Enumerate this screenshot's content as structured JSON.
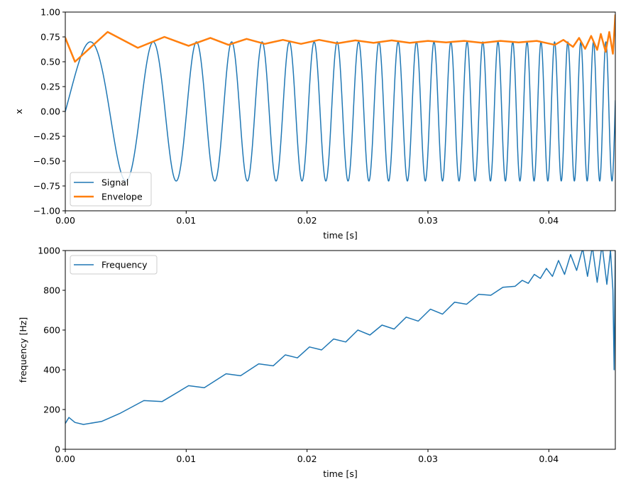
{
  "chart_data": [
    {
      "type": "line",
      "xlabel": "time [s]",
      "ylabel": "x",
      "xlim": [
        0,
        0.0455
      ],
      "ylim": [
        -1.0,
        1.0
      ],
      "xticks": [
        0.0,
        0.01,
        0.02,
        0.03,
        0.04
      ],
      "xtick_labels": [
        "0.00",
        "0.01",
        "0.02",
        "0.03",
        "0.04"
      ],
      "yticks": [
        -1.0,
        -0.75,
        -0.5,
        -0.25,
        0.0,
        0.25,
        0.5,
        0.75,
        1.0
      ],
      "ytick_labels": [
        "−1.00",
        "−0.75",
        "−0.50",
        "−0.25",
        "0.00",
        "0.25",
        "0.50",
        "0.75",
        "1.00"
      ],
      "legend_position": "lower-left",
      "series": [
        {
          "name": "Signal",
          "color": "#1f77b4",
          "function": "chirp",
          "amplitude": 0.7,
          "f0_hz": 100,
          "f1_hz": 1000,
          "t1_s": 0.0455,
          "x_range": [
            0,
            0.0455
          ]
        },
        {
          "name": "Envelope",
          "color": "#ff7f0e",
          "x": [
            0.0,
            0.0008,
            0.0035,
            0.006,
            0.0082,
            0.0102,
            0.012,
            0.0135,
            0.015,
            0.0165,
            0.018,
            0.0195,
            0.021,
            0.0225,
            0.024,
            0.0255,
            0.027,
            0.0285,
            0.03,
            0.0315,
            0.033,
            0.0345,
            0.036,
            0.0375,
            0.039,
            0.0405,
            0.0412,
            0.042,
            0.0425,
            0.043,
            0.0435,
            0.044,
            0.0443,
            0.0447,
            0.045,
            0.0453,
            0.0455
          ],
          "y": [
            0.74,
            0.5,
            0.8,
            0.64,
            0.75,
            0.66,
            0.74,
            0.67,
            0.73,
            0.68,
            0.72,
            0.68,
            0.72,
            0.685,
            0.715,
            0.69,
            0.715,
            0.69,
            0.71,
            0.695,
            0.71,
            0.69,
            0.71,
            0.695,
            0.71,
            0.67,
            0.72,
            0.65,
            0.74,
            0.63,
            0.76,
            0.62,
            0.78,
            0.6,
            0.8,
            0.58,
            0.97
          ]
        }
      ]
    },
    {
      "type": "line",
      "xlabel": "time [s]",
      "ylabel": "frequency [Hz]",
      "xlim": [
        0,
        0.0455
      ],
      "ylim": [
        0,
        1000
      ],
      "xticks": [
        0.0,
        0.01,
        0.02,
        0.03,
        0.04
      ],
      "xtick_labels": [
        "0.00",
        "0.01",
        "0.02",
        "0.03",
        "0.04"
      ],
      "yticks": [
        0,
        200,
        400,
        600,
        800,
        1000
      ],
      "ytick_labels": [
        "0",
        "200",
        "400",
        "600",
        "800",
        "1000"
      ],
      "legend_position": "upper-left",
      "series": [
        {
          "name": "Frequency",
          "color": "#1f77b4",
          "x": [
            0.0,
            0.0003,
            0.0008,
            0.0015,
            0.003,
            0.0045,
            0.0065,
            0.008,
            0.0102,
            0.0115,
            0.0133,
            0.0145,
            0.016,
            0.0172,
            0.0182,
            0.0192,
            0.0202,
            0.0212,
            0.0222,
            0.0232,
            0.0242,
            0.0252,
            0.0262,
            0.0272,
            0.0282,
            0.0292,
            0.0302,
            0.0312,
            0.0322,
            0.0332,
            0.0342,
            0.0352,
            0.0362,
            0.0372,
            0.0378,
            0.0383,
            0.0388,
            0.0393,
            0.0398,
            0.0403,
            0.0408,
            0.0413,
            0.0418,
            0.0423,
            0.0428,
            0.0432,
            0.0436,
            0.044,
            0.0444,
            0.0448,
            0.0451,
            0.0453,
            0.0454,
            0.0455
          ],
          "y": [
            130,
            160,
            135,
            125,
            140,
            180,
            245,
            240,
            320,
            310,
            380,
            370,
            430,
            420,
            475,
            460,
            515,
            500,
            555,
            540,
            600,
            575,
            625,
            605,
            665,
            645,
            705,
            680,
            740,
            730,
            780,
            775,
            815,
            820,
            850,
            835,
            880,
            860,
            910,
            870,
            950,
            880,
            980,
            900,
            1010,
            870,
            1020,
            840,
            1030,
            830,
            1000,
            800,
            400,
            1000
          ]
        }
      ]
    }
  ]
}
